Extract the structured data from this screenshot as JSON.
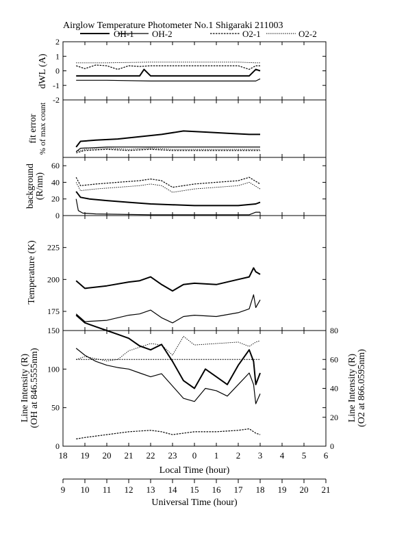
{
  "title": "Airglow Temperature Photometer No.1 Shigaraki 211003",
  "legend": [
    {
      "name": "OH-1",
      "style": "solid-thick"
    },
    {
      "name": "OH-2",
      "style": "solid-thin"
    },
    {
      "name": "O2-1",
      "style": "dashed"
    },
    {
      "name": "O2-2",
      "style": "dotted"
    }
  ],
  "chart_data": [
    {
      "type": "line",
      "panel": "dWL",
      "ylabel": "dWL (A)",
      "ylim": [
        -2,
        2
      ],
      "yticks": [
        -2,
        -1,
        0,
        1,
        2
      ],
      "series": [
        {
          "name": "OH-1",
          "x": [
            18.6,
            19.5,
            20.5,
            21.0,
            21.5,
            21.7,
            22.0,
            23.0,
            24.0,
            25.0,
            26.0,
            26.5,
            26.8,
            27.0
          ],
          "values": [
            -0.35,
            -0.35,
            -0.35,
            -0.35,
            -0.35,
            0.1,
            -0.35,
            -0.35,
            -0.35,
            -0.35,
            -0.35,
            -0.35,
            0.1,
            0.0
          ]
        },
        {
          "name": "OH-2",
          "x": [
            18.6,
            20.0,
            22.0,
            24.0,
            26.0,
            26.8,
            27.0
          ],
          "values": [
            -0.65,
            -0.65,
            -0.7,
            -0.7,
            -0.7,
            -0.7,
            -0.55
          ]
        },
        {
          "name": "O2-1",
          "x": [
            18.6,
            19.0,
            19.5,
            20.0,
            20.5,
            21.0,
            21.5,
            22.0,
            23.0,
            24.0,
            25.0,
            26.0,
            26.5,
            26.8,
            27.0
          ],
          "values": [
            0.35,
            0.15,
            0.4,
            0.35,
            0.1,
            0.35,
            0.3,
            0.35,
            0.35,
            0.35,
            0.35,
            0.35,
            0.1,
            0.35,
            0.35
          ]
        },
        {
          "name": "O2-2",
          "x": [
            18.6,
            20.0,
            22.0,
            24.0,
            26.0,
            26.8,
            27.0
          ],
          "values": [
            0.55,
            0.55,
            0.6,
            0.6,
            0.6,
            0.55,
            0.55
          ]
        }
      ]
    },
    {
      "type": "line",
      "panel": "fit error",
      "ylabel": "fit error % of max count",
      "ylim": [
        0,
        5
      ],
      "yticks": [],
      "series": [
        {
          "name": "OH-1",
          "x": [
            18.6,
            18.8,
            19.5,
            20.5,
            21.5,
            22.5,
            23.5,
            24.5,
            25.5,
            26.5,
            27.0
          ],
          "values": [
            0.9,
            1.4,
            1.5,
            1.6,
            1.8,
            2.0,
            2.3,
            2.2,
            2.1,
            2.0,
            2.0
          ]
        },
        {
          "name": "OH-2",
          "x": [
            18.6,
            18.8,
            20.0,
            22.0,
            24.0,
            26.0,
            27.0
          ],
          "values": [
            0.5,
            0.8,
            0.9,
            0.9,
            0.9,
            0.9,
            0.9
          ]
        },
        {
          "name": "O2-1",
          "x": [
            18.6,
            19.0,
            20.0,
            21.0,
            22.0,
            23.0,
            24.0,
            25.0,
            26.0,
            27.0
          ],
          "values": [
            0.4,
            0.6,
            0.7,
            0.6,
            0.7,
            0.6,
            0.6,
            0.6,
            0.6,
            0.6
          ]
        },
        {
          "name": "O2-2",
          "x": [
            18.6,
            19.0,
            20.0,
            21.0,
            22.0,
            23.0,
            24.0,
            25.0,
            26.0,
            27.0
          ],
          "values": [
            0.5,
            0.7,
            0.8,
            0.7,
            0.8,
            0.7,
            0.7,
            0.7,
            0.7,
            0.7
          ]
        }
      ]
    },
    {
      "type": "line",
      "panel": "background",
      "ylabel": "background (R/nm)",
      "ylim": [
        0,
        70
      ],
      "yticks": [
        0,
        20,
        40,
        60
      ],
      "series": [
        {
          "name": "OH-1",
          "x": [
            18.6,
            18.8,
            19.2,
            20.0,
            21.0,
            22.0,
            23.0,
            24.0,
            25.0,
            26.0,
            26.8,
            27.0
          ],
          "values": [
            29,
            22,
            20,
            18,
            16,
            14,
            13,
            12,
            12,
            12,
            14,
            16
          ]
        },
        {
          "name": "OH-2",
          "x": [
            18.6,
            18.7,
            18.9,
            19.5,
            22.0,
            24.0,
            26.5,
            26.8,
            27.0
          ],
          "values": [
            20,
            6,
            3,
            2,
            1,
            1,
            1,
            4,
            4
          ]
        },
        {
          "name": "O2-1",
          "x": [
            18.6,
            18.8,
            19.5,
            20.5,
            21.5,
            22.0,
            22.5,
            23.0,
            23.5,
            24.0,
            25.0,
            26.0,
            26.5,
            27.0
          ],
          "values": [
            46,
            36,
            38,
            40,
            42,
            44,
            42,
            34,
            36,
            38,
            40,
            42,
            46,
            38
          ]
        },
        {
          "name": "O2-2",
          "x": [
            18.6,
            18.8,
            19.5,
            20.5,
            21.5,
            22.0,
            22.5,
            23.0,
            23.5,
            24.0,
            25.0,
            26.0,
            26.5,
            27.0
          ],
          "values": [
            40,
            30,
            32,
            34,
            36,
            38,
            36,
            28,
            30,
            32,
            34,
            36,
            40,
            32
          ]
        }
      ]
    },
    {
      "type": "line",
      "panel": "temperature",
      "ylabel": "Temperature (K)",
      "ylim": [
        160,
        250
      ],
      "yticks": [
        175,
        200,
        225
      ],
      "series": [
        {
          "name": "OH-1",
          "x": [
            18.6,
            19.0,
            20.0,
            21.0,
            21.5,
            22.0,
            22.5,
            23.0,
            23.5,
            24.0,
            25.0,
            26.0,
            26.5,
            26.7,
            26.8,
            27.0
          ],
          "values": [
            199,
            193,
            195,
            198,
            199,
            202,
            196,
            191,
            196,
            197,
            196,
            200,
            202,
            209,
            206,
            204
          ]
        },
        {
          "name": "OH-2",
          "x": [
            18.6,
            19.0,
            20.0,
            21.0,
            21.5,
            22.0,
            22.5,
            23.0,
            23.5,
            24.0,
            25.0,
            26.0,
            26.5,
            26.7,
            26.8,
            27.0
          ],
          "values": [
            173,
            167,
            168,
            172,
            173,
            176,
            170,
            166,
            171,
            172,
            171,
            174,
            177,
            188,
            178,
            184
          ]
        }
      ]
    },
    {
      "type": "line",
      "panel": "line intensity",
      "ylabel": "Line Intensity (R) (OH at 846.5555nm)",
      "ylabel_right": "Line Intensity (R) (O2 at 866.0595nm)",
      "ylim": [
        0,
        150
      ],
      "ylim_right": [
        0,
        80
      ],
      "yticks": [
        0,
        50,
        100,
        150
      ],
      "yticks_right": [
        0,
        20,
        40,
        60,
        80
      ],
      "series": [
        {
          "name": "OH-1",
          "axis": "left",
          "x": [
            18.6,
            19.0,
            19.5,
            20.0,
            20.5,
            21.0,
            21.5,
            22.0,
            22.5,
            23.0,
            23.5,
            24.0,
            24.5,
            25.0,
            25.5,
            26.0,
            26.5,
            26.7,
            26.8,
            27.0
          ],
          "values": [
            170,
            160,
            155,
            150,
            145,
            140,
            130,
            125,
            132,
            110,
            85,
            75,
            100,
            90,
            80,
            105,
            125,
            110,
            80,
            95
          ]
        },
        {
          "name": "OH-2",
          "axis": "left",
          "x": [
            18.6,
            19.0,
            19.5,
            20.0,
            20.5,
            21.0,
            21.5,
            22.0,
            22.5,
            23.0,
            23.5,
            24.0,
            24.5,
            25.0,
            25.5,
            26.0,
            26.5,
            26.7,
            26.8,
            27.0
          ],
          "values": [
            127,
            118,
            110,
            105,
            102,
            100,
            95,
            90,
            94,
            78,
            62,
            58,
            75,
            72,
            65,
            80,
            95,
            80,
            55,
            68
          ]
        },
        {
          "name": "O2-1",
          "axis": "right",
          "x": [
            18.6,
            19.0,
            20.0,
            20.5,
            21.0,
            22.0,
            22.5,
            23.0,
            23.5,
            24.0,
            25.0,
            26.0,
            26.5,
            26.8,
            27.0
          ],
          "values": [
            5,
            6,
            8,
            9,
            10,
            11,
            10,
            8,
            9,
            10,
            10,
            11,
            12,
            9,
            8
          ]
        },
        {
          "name": "O2-2",
          "axis": "right",
          "x": [
            18.6,
            19.0,
            20.0,
            20.5,
            21.0,
            22.0,
            22.5,
            23.0,
            23.5,
            24.0,
            25.0,
            26.0,
            26.5,
            26.8,
            27.0
          ],
          "values": [
            60,
            62,
            59,
            60,
            66,
            71,
            70,
            63,
            76,
            70,
            71,
            72,
            69,
            72,
            73
          ]
        },
        {
          "name": "O2-1 baseline",
          "axis": "right",
          "x": [
            18.6,
            27.0
          ],
          "values": [
            60,
            60
          ]
        }
      ]
    }
  ],
  "axes": {
    "local_time": {
      "label": "Local Time (hour)",
      "tick_values": [
        18,
        19,
        20,
        21,
        22,
        23,
        24,
        25,
        26,
        27,
        28,
        29,
        30
      ],
      "tick_labels": [
        "18",
        "19",
        "20",
        "21",
        "22",
        "23",
        "0",
        "1",
        "2",
        "3",
        "4",
        "5",
        "6"
      ]
    },
    "universal_time": {
      "label": "Universal Time (hour)",
      "tick_labels": [
        "9",
        "10",
        "11",
        "12",
        "13",
        "14",
        "15",
        "16",
        "17",
        "18",
        "19",
        "20",
        "21"
      ]
    }
  }
}
